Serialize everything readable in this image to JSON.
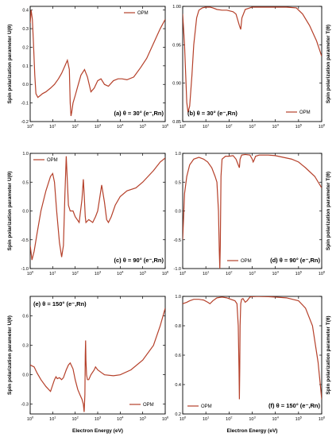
{
  "figure": {
    "xlabel": "Electron Energy (eV)",
    "ylabel_U": "Spin polarization parameter U(θ)",
    "ylabel_T": "Spin polarization parameter T(θ)",
    "line_color": "#b5402a"
  },
  "chart_data": [
    {
      "id": "a",
      "type": "line",
      "param": "U",
      "label": "(a) θ = 30° (e⁻,Rn)",
      "legend": "OPM",
      "xlog": true,
      "xlim": [
        1,
        1000000
      ],
      "ylim": [
        -0.2,
        0.42
      ],
      "yticks": [
        -0.2,
        -0.1,
        0.0,
        0.1,
        0.2,
        0.3,
        0.4
      ],
      "yticklabels": [
        "-0.2",
        "-0.1",
        "0.0",
        "0.1",
        "0.2",
        "0.3",
        "0.4"
      ],
      "series": [
        {
          "name": "OPM",
          "x": [
            1,
            1.1,
            1.25,
            1.4,
            1.6,
            1.8,
            2.2,
            2.8,
            3.5,
            5,
            8,
            12,
            18,
            25,
            35,
            45,
            55,
            60,
            65,
            70,
            80,
            100,
            130,
            180,
            260,
            350,
            500,
            700,
            1000,
            1400,
            2000,
            3000,
            5000,
            8000,
            12000,
            20000,
            40000,
            80000,
            150000,
            300000,
            600000,
            1000000
          ],
          "y": [
            0.33,
            0.4,
            0.35,
            0.22,
            0.05,
            -0.05,
            -0.07,
            -0.06,
            -0.05,
            -0.04,
            -0.02,
            0.0,
            0.03,
            0.06,
            0.1,
            0.13,
            0.08,
            -0.1,
            -0.17,
            -0.15,
            -0.1,
            -0.06,
            -0.01,
            0.05,
            0.08,
            0.04,
            -0.04,
            -0.02,
            0.02,
            0.03,
            0.0,
            -0.01,
            0.02,
            0.03,
            0.03,
            0.025,
            0.04,
            0.09,
            0.14,
            0.22,
            0.3,
            0.35
          ]
        }
      ]
    },
    {
      "id": "b",
      "type": "line",
      "param": "T",
      "label": "(b) θ = 30° (e⁻,Rn)",
      "legend": "OPM",
      "xlog": true,
      "xlim": [
        1,
        1000000
      ],
      "ylim": [
        0.85,
        1.0
      ],
      "yticks": [
        0.85,
        0.9,
        0.95,
        1.0
      ],
      "yticklabels": [
        "0.85",
        "0.90",
        "0.95",
        "1.00"
      ],
      "series": [
        {
          "name": "OPM",
          "x": [
            1,
            1.2,
            1.5,
            1.7,
            2,
            2.5,
            3,
            4,
            5,
            7,
            10,
            15,
            20,
            30,
            50,
            80,
            150,
            200,
            280,
            320,
            360,
            500,
            1000,
            3000,
            10000,
            30000,
            80000,
            150000,
            300000,
            600000,
            1000000
          ],
          "y": [
            0.99,
            0.95,
            0.875,
            0.862,
            0.87,
            0.91,
            0.95,
            0.985,
            0.995,
            0.998,
            0.999,
            0.999,
            0.998,
            0.996,
            0.995,
            0.995,
            0.993,
            0.99,
            0.975,
            0.97,
            0.985,
            0.996,
            0.999,
            0.999,
            0.999,
            0.999,
            0.998,
            0.99,
            0.975,
            0.955,
            0.935
          ]
        }
      ]
    },
    {
      "id": "c",
      "type": "line",
      "param": "U",
      "label": "(c) θ = 90° (e⁻,Rn)",
      "legend": "OPM",
      "xlog": true,
      "xlim": [
        1,
        1000000
      ],
      "ylim": [
        -1.0,
        1.0
      ],
      "yticks": [
        -1.0,
        -0.5,
        0.0,
        0.5,
        1.0
      ],
      "yticklabels": [
        "-1.0",
        "-0.5",
        "0.0",
        "0.5",
        "1.0"
      ],
      "series": [
        {
          "name": "OPM",
          "x": [
            1,
            1.2,
            1.5,
            2,
            3,
            5,
            8,
            10,
            12,
            15,
            20,
            25,
            30,
            35,
            40,
            45,
            50,
            60,
            80,
            100,
            150,
            200,
            230,
            250,
            280,
            300,
            400,
            600,
            800,
            1000,
            1200,
            1500,
            2000,
            2500,
            3000,
            4000,
            6000,
            10000,
            20000,
            50000,
            100000,
            300000,
            600000,
            1000000
          ],
          "y": [
            -0.6,
            -0.85,
            -0.7,
            -0.4,
            0.0,
            0.35,
            0.6,
            0.65,
            0.5,
            0.0,
            -0.55,
            -0.8,
            -0.6,
            0.3,
            0.95,
            0.5,
            0.1,
            0.0,
            0.0,
            -0.1,
            -0.2,
            0.2,
            0.55,
            0.3,
            -0.1,
            -0.2,
            -0.15,
            -0.2,
            -0.1,
            0.0,
            0.2,
            0.45,
            0.15,
            -0.15,
            -0.2,
            -0.1,
            0.1,
            0.25,
            0.35,
            0.4,
            0.5,
            0.7,
            0.85,
            0.92
          ]
        }
      ]
    },
    {
      "id": "d",
      "type": "line",
      "param": "T",
      "label": "(d) θ = 90° (e⁻,Rn)",
      "legend": "OPM",
      "xlog": true,
      "xlim": [
        1,
        1000000
      ],
      "ylim": [
        -1.0,
        1.0
      ],
      "yticks": [
        -1.0,
        -0.5,
        0.0,
        0.5,
        1.0
      ],
      "yticklabels": [
        "-1.0",
        "-0.5",
        "0.0",
        "0.5",
        "1.0"
      ],
      "series": [
        {
          "name": "OPM",
          "x": [
            1,
            1.2,
            1.5,
            2,
            3,
            5,
            8,
            12,
            18,
            25,
            30,
            35,
            38,
            40,
            42,
            45,
            50,
            70,
            100,
            150,
            200,
            250,
            280,
            300,
            350,
            500,
            800,
            1000,
            1100,
            1200,
            1400,
            2000,
            5000,
            10000,
            50000,
            100000,
            200000,
            500000,
            1000000
          ],
          "y": [
            -0.5,
            0.3,
            0.6,
            0.8,
            0.9,
            0.93,
            0.9,
            0.85,
            0.75,
            0.6,
            0.5,
            0.0,
            -0.7,
            -1.0,
            -0.6,
            0.6,
            0.9,
            0.95,
            0.95,
            0.96,
            0.9,
            0.8,
            0.75,
            0.9,
            0.97,
            0.98,
            0.97,
            0.9,
            0.85,
            0.88,
            0.95,
            0.97,
            0.97,
            0.96,
            0.9,
            0.85,
            0.75,
            0.6,
            0.4
          ]
        }
      ]
    },
    {
      "id": "e",
      "type": "line",
      "param": "U",
      "label": "(e) θ = 150° (e⁻,Rn)",
      "legend": "OPM",
      "xlog": true,
      "xlim": [
        1,
        1000000
      ],
      "ylim": [
        -0.4,
        0.8
      ],
      "yticks": [
        -0.3,
        0.0,
        0.3,
        0.6
      ],
      "yticklabels": [
        "-0.3",
        "0.0",
        "0.3",
        "0.6"
      ],
      "series": [
        {
          "name": "OPM",
          "x": [
            1,
            1.5,
            2,
            3,
            5,
            8,
            12,
            14,
            16,
            20,
            25,
            30,
            40,
            50,
            60,
            80,
            100,
            130,
            160,
            200,
            230,
            250,
            270,
            280,
            290,
            300,
            320,
            350,
            400,
            500,
            700,
            800,
            1000,
            1500,
            2000,
            5000,
            10000,
            30000,
            100000,
            300000,
            600000,
            1000000
          ],
          "y": [
            0.1,
            0.08,
            0.02,
            -0.05,
            -0.12,
            -0.17,
            -0.05,
            -0.02,
            -0.04,
            -0.03,
            -0.05,
            -0.03,
            0.05,
            0.1,
            0.12,
            0.06,
            -0.05,
            -0.15,
            -0.2,
            -0.25,
            -0.3,
            -0.38,
            -0.2,
            0.2,
            0.35,
            0.15,
            0.0,
            -0.05,
            -0.05,
            0.0,
            0.05,
            0.08,
            0.05,
            0.02,
            0.0,
            -0.01,
            0.0,
            0.05,
            0.15,
            0.3,
            0.5,
            0.68
          ]
        }
      ]
    },
    {
      "id": "f",
      "type": "line",
      "param": "T",
      "label": "(f) θ = 150° (e⁻,Rn)",
      "legend": "OPM",
      "xlog": true,
      "xlim": [
        1,
        1000000
      ],
      "ylim": [
        0.2,
        1.0
      ],
      "yticks": [
        0.2,
        0.4,
        0.6,
        0.8,
        1.0
      ],
      "yticklabels": [
        "0.2",
        "0.4",
        "0.6",
        "0.8",
        "1.0"
      ],
      "series": [
        {
          "name": "OPM",
          "x": [
            1,
            1.5,
            2,
            3,
            5,
            8,
            12,
            15,
            20,
            30,
            50,
            80,
            120,
            180,
            220,
            250,
            270,
            280,
            290,
            300,
            320,
            350,
            400,
            500,
            600,
            800,
            1000,
            1500,
            2000,
            5000,
            10000,
            30000,
            100000,
            200000,
            400000,
            700000,
            1000000
          ],
          "y": [
            0.95,
            0.96,
            0.97,
            0.98,
            0.98,
            0.975,
            0.96,
            0.95,
            0.97,
            0.99,
            0.995,
            0.99,
            0.98,
            0.97,
            0.95,
            0.8,
            0.5,
            0.3,
            0.5,
            0.8,
            0.95,
            0.98,
            0.985,
            0.96,
            0.97,
            0.995,
            0.998,
            0.999,
            0.999,
            0.998,
            0.995,
            0.99,
            0.97,
            0.92,
            0.8,
            0.55,
            0.3
          ]
        }
      ]
    }
  ]
}
